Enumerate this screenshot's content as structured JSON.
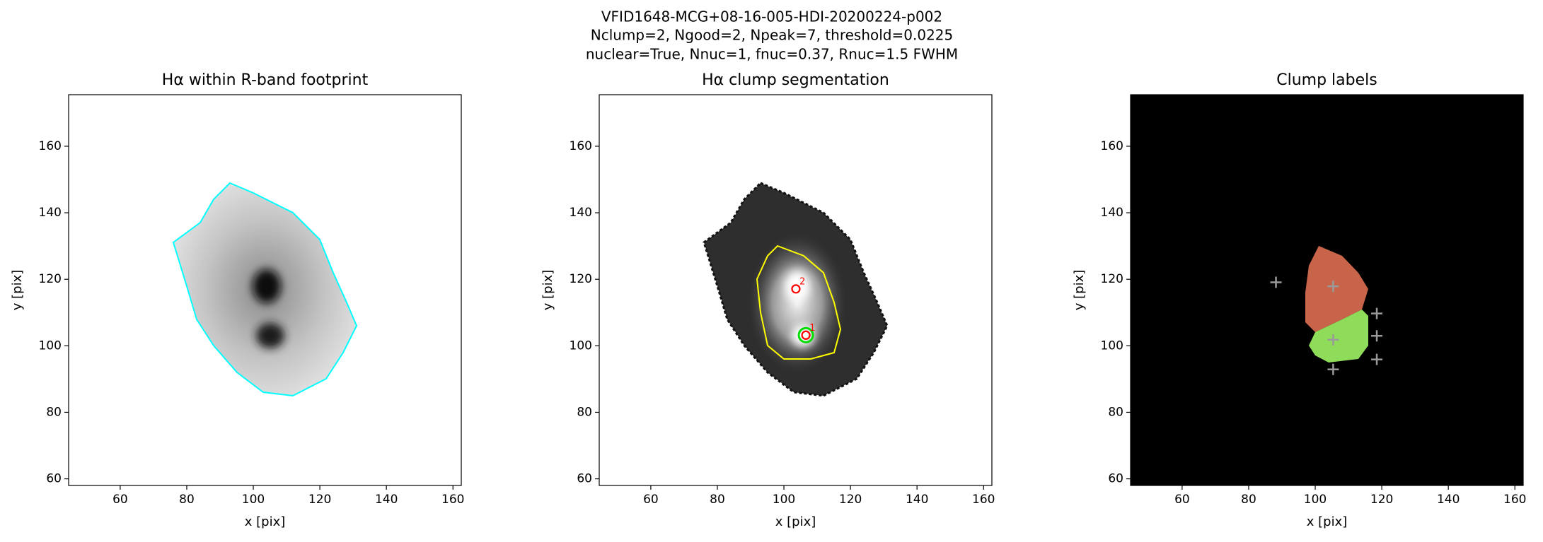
{
  "suptitle": [
    "VFID1648-MCG+08-16-005-HDI-20200224-p002",
    "Nclump=2, Ngood=2, Npeak=7, threshold=0.0225",
    "nuclear=True, Nnuc=1, fnuc=0.37, Rnuc=1.5 FWHM"
  ],
  "chart_data": [
    {
      "type": "image",
      "title": "Hα within R-band footprint",
      "xlabel": "x [pix]",
      "ylabel": "y [pix]",
      "xlim": [
        44.5,
        162.5
      ],
      "ylim": [
        58,
        175.5
      ],
      "xticks": [
        60,
        80,
        100,
        120,
        140,
        160
      ],
      "yticks": [
        60,
        80,
        100,
        120,
        140,
        160
      ]
    },
    {
      "type": "image",
      "title": "Hα clump segmentation",
      "xlabel": "x [pix]",
      "ylabel": "y [pix]",
      "xlim": [
        44.5,
        162.5
      ],
      "ylim": [
        58,
        175.5
      ],
      "xticks": [
        60,
        80,
        100,
        120,
        140,
        160
      ],
      "yticks": [
        60,
        80,
        100,
        120,
        140,
        160
      ],
      "peaks": {
        "color": "#ff0000",
        "x": [
          103.6,
          106.6
        ],
        "y": [
          117.1,
          103.2
        ],
        "labels": [
          "2",
          "1"
        ]
      },
      "nucleus": {
        "color": "#00dd00",
        "x": [
          106.6
        ],
        "y": [
          103.2
        ]
      }
    },
    {
      "type": "image",
      "title": "Clump labels",
      "xlabel": "x [pix]",
      "ylabel": "y [pix]",
      "xlim": [
        44.5,
        162.5
      ],
      "ylim": [
        58,
        175.5
      ],
      "xticks": [
        60,
        80,
        100,
        120,
        140,
        160
      ],
      "yticks": [
        60,
        80,
        100,
        120,
        140,
        160
      ],
      "markers": {
        "color": "#9a9a9a",
        "x": [
          88.2,
          105.4,
          118.5,
          118.5,
          118.5,
          105.4,
          105.4
        ],
        "y": [
          119.1,
          117.9,
          109.7,
          103,
          95.9,
          101.8,
          92.9
        ]
      }
    }
  ]
}
